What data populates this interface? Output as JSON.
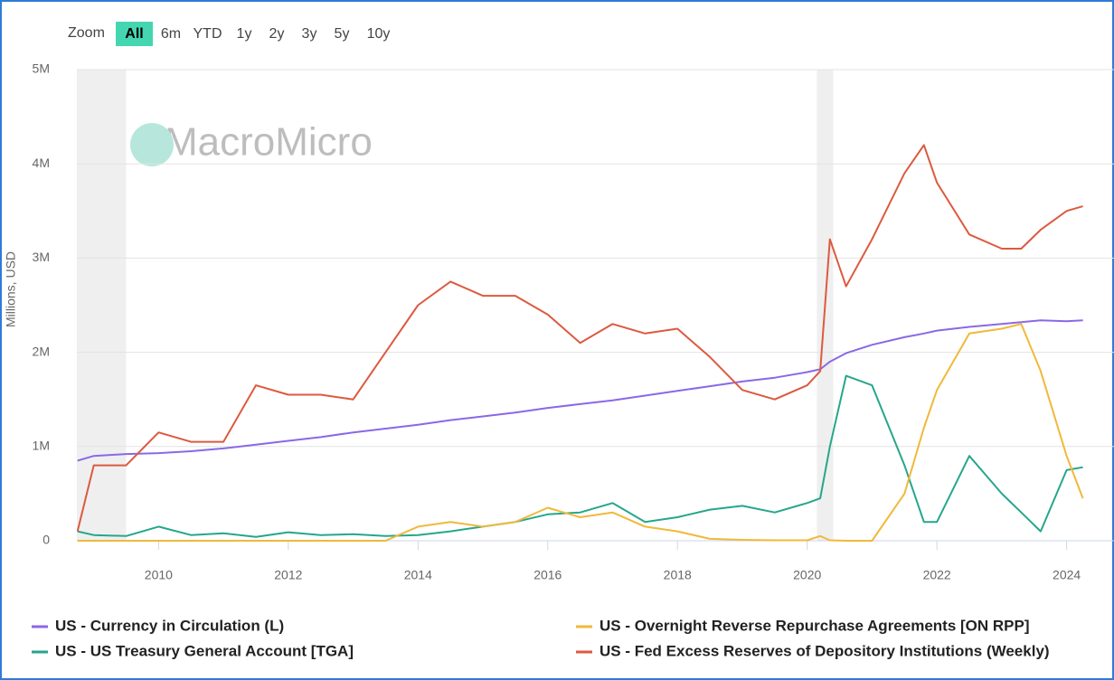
{
  "chart_data": {
    "type": "line",
    "range_selector": {
      "label": "Zoom",
      "buttons": [
        "All",
        "6m",
        "YTD",
        "1y",
        "2y",
        "3y",
        "5y",
        "10y"
      ],
      "active": 0
    },
    "watermark": "MacroMicro",
    "y_axis_label": "Millions, USD",
    "x": [
      2008.75,
      2009.0,
      2009.5,
      2010.0,
      2010.5,
      2011.0,
      2011.5,
      2012.0,
      2012.5,
      2013.0,
      2013.5,
      2014.0,
      2014.5,
      2015.0,
      2015.5,
      2016.0,
      2016.5,
      2017.0,
      2017.5,
      2018.0,
      2018.5,
      2019.0,
      2019.5,
      2020.0,
      2020.2,
      2020.35,
      2020.6,
      2021.0,
      2021.5,
      2021.8,
      2022.0,
      2022.5,
      2023.0,
      2023.3,
      2023.6,
      2024.0,
      2024.25
    ],
    "xlim": [
      2008.74,
      2024.73
    ],
    "xticks": [
      2010,
      2012,
      2014,
      2016,
      2018,
      2020,
      2022,
      2024
    ],
    "ylim": [
      0,
      5000000
    ],
    "yticks": [
      0,
      {
        "value": 1000000,
        "label": "1M"
      },
      {
        "value": 2000000,
        "label": "2M"
      },
      {
        "value": 3000000,
        "label": "3M"
      },
      {
        "value": 4000000,
        "label": "4M"
      },
      {
        "value": 5000000,
        "label": "5M"
      }
    ],
    "grid": true,
    "recession_bands": [
      [
        2008.74,
        2009.5
      ],
      [
        2020.15,
        2020.4
      ]
    ],
    "series": [
      {
        "name": "US - Currency in Circulation (L)",
        "color": "#8b68e6",
        "values": [
          850000,
          900000,
          920000,
          930000,
          950000,
          980000,
          1020000,
          1060000,
          1100000,
          1150000,
          1190000,
          1230000,
          1280000,
          1320000,
          1360000,
          1410000,
          1450000,
          1490000,
          1540000,
          1590000,
          1640000,
          1690000,
          1730000,
          1790000,
          1820000,
          1900000,
          1990000,
          2080000,
          2160000,
          2200000,
          2230000,
          2270000,
          2300000,
          2320000,
          2340000,
          2330000,
          2340000
        ]
      },
      {
        "name": "US - US Treasury General Account [TGA]",
        "color": "#26a68c",
        "values": [
          100000,
          60000,
          50000,
          150000,
          60000,
          80000,
          40000,
          90000,
          60000,
          70000,
          50000,
          60000,
          100000,
          150000,
          200000,
          280000,
          300000,
          400000,
          200000,
          250000,
          330000,
          370000,
          300000,
          400000,
          450000,
          1000000,
          1750000,
          1650000,
          800000,
          200000,
          200000,
          900000,
          500000,
          300000,
          100000,
          750000,
          780000
        ]
      },
      {
        "name": "US - Overnight Reverse Repurchase Agreements [ON RPP]",
        "color": "#f0b93a",
        "values": [
          0,
          0,
          0,
          0,
          0,
          0,
          0,
          0,
          0,
          0,
          0,
          150000,
          200000,
          150000,
          200000,
          350000,
          250000,
          300000,
          150000,
          100000,
          20000,
          10000,
          5000,
          5000,
          50000,
          5000,
          0,
          0,
          500000,
          1200000,
          1600000,
          2200000,
          2250000,
          2300000,
          1800000,
          900000,
          450000
        ]
      },
      {
        "name": "US - Fed Excess Reserves of Depository Institutions (Weekly)",
        "color": "#dc5a3f",
        "values": [
          100000,
          800000,
          800000,
          1150000,
          1050000,
          1050000,
          1650000,
          1550000,
          1550000,
          1500000,
          2000000,
          2500000,
          2750000,
          2600000,
          2600000,
          2400000,
          2100000,
          2300000,
          2200000,
          2250000,
          1950000,
          1600000,
          1500000,
          1650000,
          1800000,
          3200000,
          2700000,
          3200000,
          3900000,
          4200000,
          3800000,
          3250000,
          3100000,
          3100000,
          3300000,
          3500000,
          3550000
        ]
      }
    ]
  }
}
